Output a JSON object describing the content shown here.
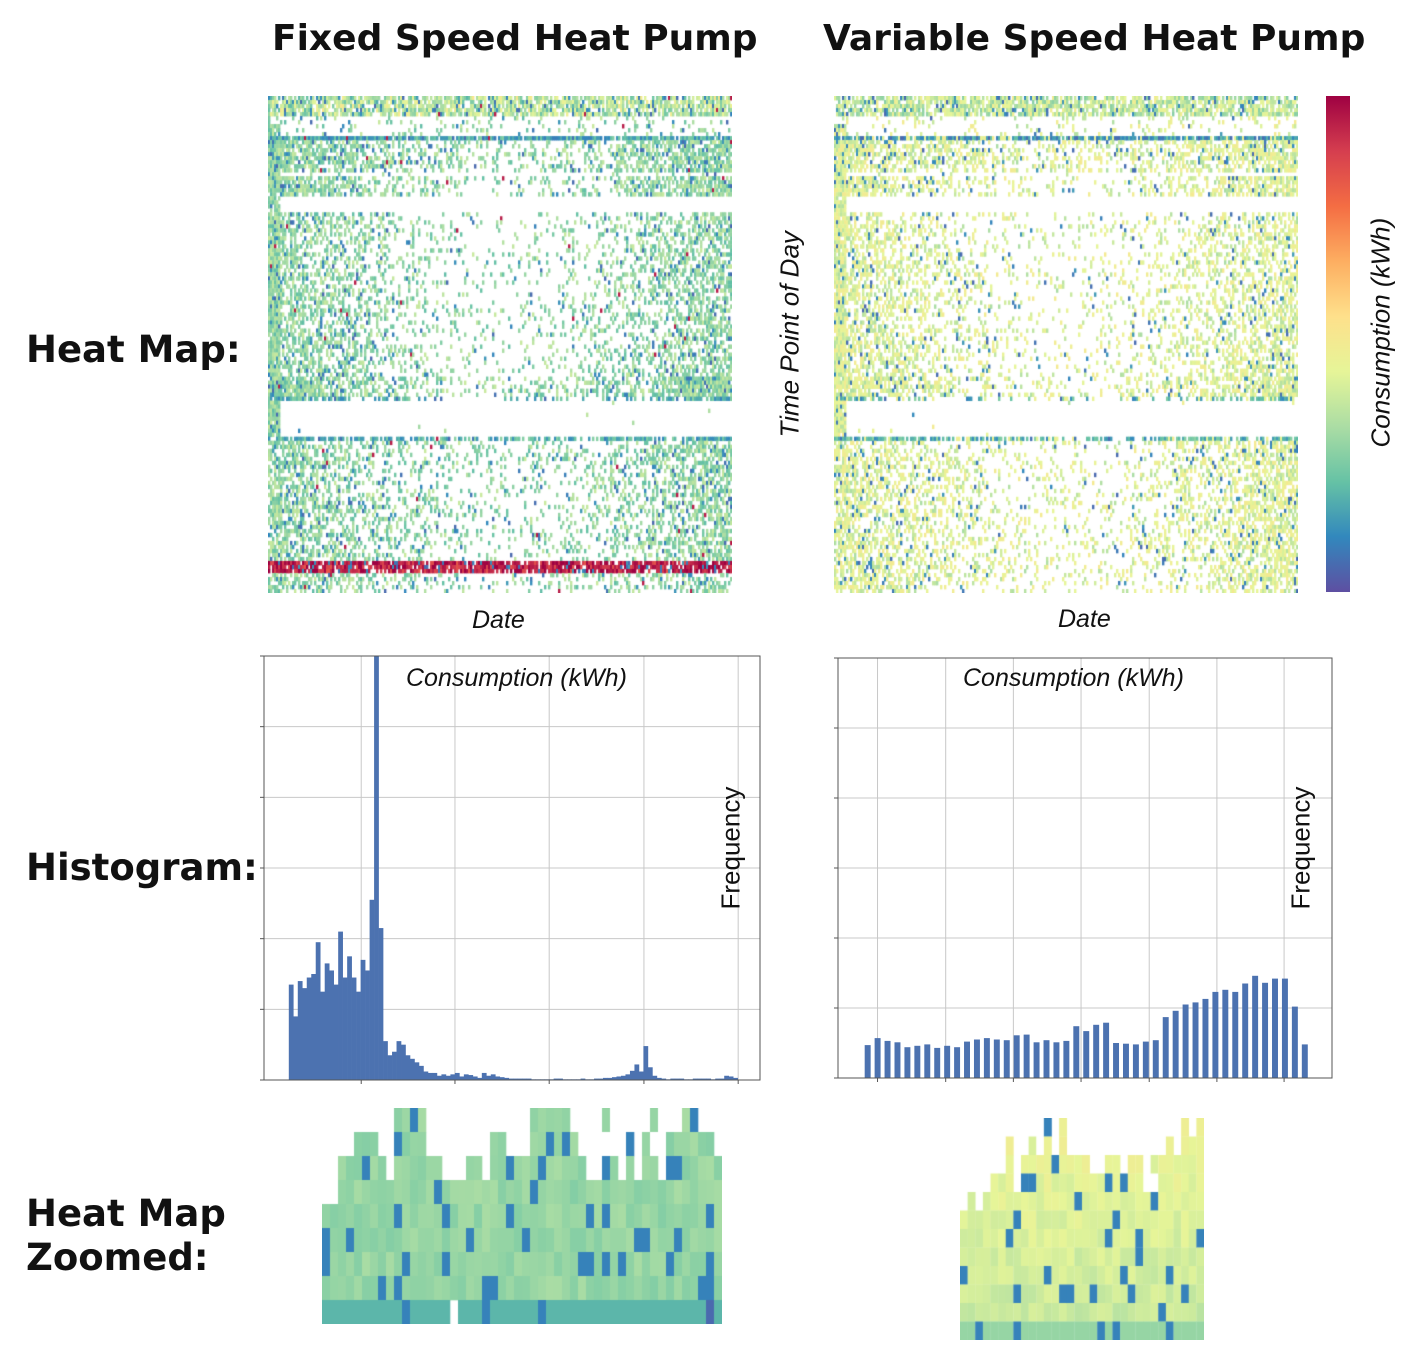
{
  "column_titles": [
    "Fixed Speed Heat Pump",
    "Variable Speed Heat Pump"
  ],
  "row_labels": {
    "heatmap": "Heat Map:",
    "histogram": "Histogram:",
    "zoomed_line1": "Heat Map",
    "zoomed_line2": "Zoomed:"
  },
  "heatmap_axes": {
    "xlabel": "Date",
    "ylabel": "Time Point of Day",
    "colorbar_label": "Consumption (kWh)"
  },
  "histogram_axes": {
    "xlabel": "Consumption (kWh)",
    "ylabel": "Frequency"
  },
  "colors": {
    "colormap": [
      "#5e4fa2",
      "#3288bd",
      "#66c2a5",
      "#abdda4",
      "#e6f598",
      "#fee08b",
      "#fdae61",
      "#f46d43",
      "#d53e4f",
      "#9e0142"
    ],
    "bar": "#4c72b0",
    "grid": "#c8c8c8"
  },
  "chart_data": [
    {
      "type": "heatmap",
      "panel": "fixed-speed-heatmap",
      "xlabel": "Date",
      "ylabel": "",
      "colormap": "Spectral_r",
      "note_levels": "dominant level 0.3 (green) with dense red band near end of day"
    },
    {
      "type": "heatmap",
      "panel": "variable-speed-heatmap",
      "xlabel": "Date",
      "ylabel": "Time Point of Day",
      "colorbar_label": "Consumption (kWh)",
      "colormap": "Spectral_r"
    },
    {
      "type": "bar",
      "panel": "fixed-speed-histogram",
      "xlabel": "Consumption (kWh)",
      "ylabel": "Frequency",
      "grid": true,
      "ylim": [
        0,
        6
      ],
      "bins": 100,
      "values": [
        1.35,
        0.9,
        1.4,
        1.3,
        1.45,
        1.5,
        1.95,
        1.25,
        1.65,
        1.55,
        1.35,
        2.1,
        1.45,
        1.75,
        1.45,
        1.25,
        1.7,
        1.55,
        2.55,
        6.0,
        2.15,
        0.55,
        0.35,
        0.4,
        0.55,
        0.5,
        0.35,
        0.3,
        0.25,
        0.2,
        0.12,
        0.1,
        0.1,
        0.06,
        0.08,
        0.06,
        0.08,
        0.1,
        0.05,
        0.08,
        0.07,
        0.05,
        0.03,
        0.1,
        0.06,
        0.08,
        0.05,
        0.04,
        0.03,
        0.02,
        0.02,
        0.02,
        0.02,
        0.02,
        0.01,
        0.01,
        0.01,
        0.01,
        0.01,
        0.02,
        0.02,
        0.01,
        0.01,
        0.01,
        0.01,
        0.02,
        0.01,
        0.01,
        0.02,
        0.02,
        0.03,
        0.03,
        0.04,
        0.05,
        0.06,
        0.08,
        0.13,
        0.22,
        0.12,
        0.48,
        0.18,
        0.06,
        0.03,
        0.02,
        0.01,
        0.02,
        0.02,
        0.02,
        0.01,
        0.01,
        0.02,
        0.02,
        0.02,
        0.02,
        0.01,
        0.02,
        0.02,
        0.06,
        0.05,
        0.03
      ]
    },
    {
      "type": "bar",
      "panel": "variable-speed-histogram",
      "xlabel": "Consumption (kWh)",
      "ylabel": "Frequency",
      "grid": true,
      "ylim": [
        0,
        6
      ],
      "bins": 45,
      "values": [
        0.47,
        0.57,
        0.53,
        0.51,
        0.44,
        0.46,
        0.48,
        0.43,
        0.46,
        0.44,
        0.52,
        0.55,
        0.57,
        0.55,
        0.54,
        0.61,
        0.62,
        0.51,
        0.54,
        0.51,
        0.53,
        0.74,
        0.67,
        0.76,
        0.79,
        0.5,
        0.49,
        0.48,
        0.52,
        0.54,
        0.87,
        0.96,
        1.05,
        1.08,
        1.13,
        1.23,
        1.26,
        1.23,
        1.35,
        1.46,
        1.36,
        1.42,
        1.42,
        1.02,
        0.48
      ]
    },
    {
      "type": "heatmap",
      "panel": "fixed-speed-zoomed",
      "colormap": "Spectral_r"
    },
    {
      "type": "heatmap",
      "panel": "variable-speed-zoomed",
      "colormap": "Spectral_r"
    }
  ]
}
